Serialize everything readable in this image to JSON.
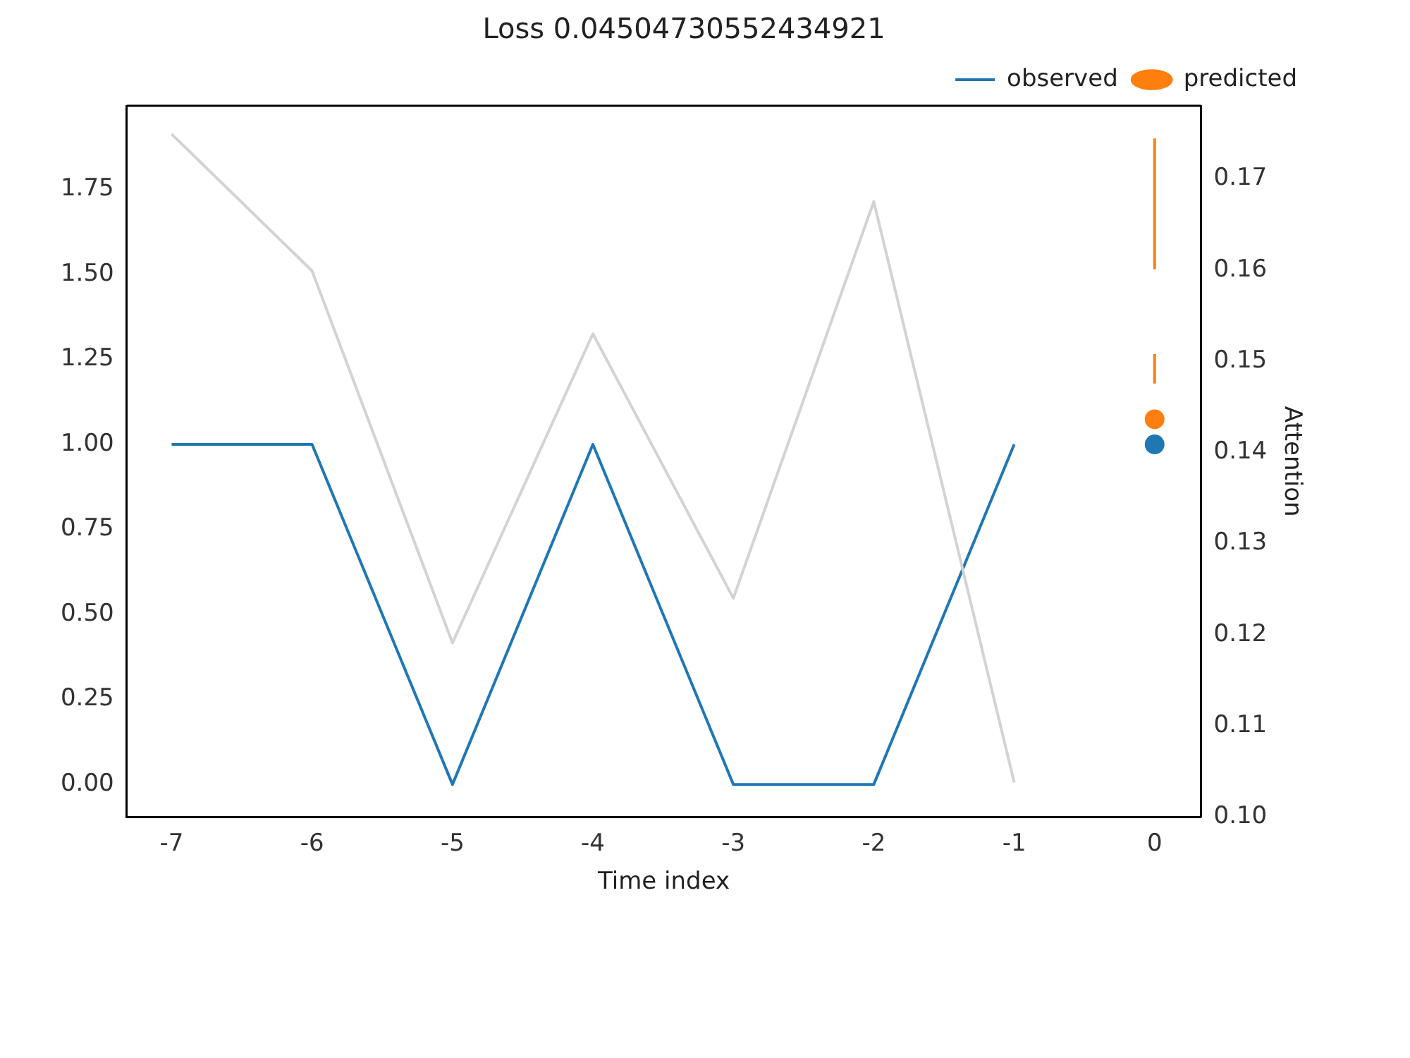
{
  "chart_data": {
    "type": "line",
    "title": "Loss 0.04504730552434921",
    "xlabel": "Time index",
    "y2label": "Attention",
    "xlim": [
      -7.32,
      0.33
    ],
    "xticks": [
      -7,
      -6,
      -5,
      -4,
      -3,
      -2,
      -1,
      0
    ],
    "ylim": [
      -0.096,
      1.996
    ],
    "yticks": [
      {
        "value": 0,
        "label": "0.00"
      },
      {
        "value": 0.25,
        "label": "0.25"
      },
      {
        "value": 0.5,
        "label": "0.50"
      },
      {
        "value": 0.75,
        "label": "0.75"
      },
      {
        "value": 1,
        "label": "1.00"
      },
      {
        "value": 1.25,
        "label": "1.25"
      },
      {
        "value": 1.5,
        "label": "1.50"
      },
      {
        "value": 1.75,
        "label": "1.75"
      }
    ],
    "y2lim": [
      0.1,
      0.178
    ],
    "y2ticks": [
      {
        "value": 0.1,
        "label": "0.10"
      },
      0.11,
      0.12,
      0.13,
      0.14,
      0.15,
      0.16,
      0.17
    ],
    "legend": "top right",
    "grid": false,
    "series": [
      {
        "axis": "y2",
        "color": "#d3d3d3",
        "x": [
          -7,
          -6,
          -5,
          -4,
          -3,
          -2,
          -1
        ],
        "values": [
          0.1749,
          0.1599,
          0.1191,
          0.153,
          0.124,
          0.1675,
          0.1038
        ],
        "marker": "none"
      },
      {
        "name": "observed",
        "color": "#1f77b4",
        "x": [
          -7,
          -6,
          -5,
          -4,
          -3,
          -2,
          -1
        ],
        "values": [
          1,
          1,
          0,
          1,
          0,
          0,
          1
        ],
        "marker": "none"
      },
      {
        "color": "#ff7f0e",
        "x": [
          0,
          0
        ],
        "values": [
          1.515,
          1.9
        ],
        "marker": "none"
      },
      {
        "color": "#ff7f0e",
        "x": [
          0,
          0
        ],
        "values": [
          1.179,
          1.266
        ],
        "marker": "none"
      },
      {
        "type": "scatter",
        "color": "#1f77b4",
        "x": [
          0
        ],
        "values": [
          1
        ],
        "marker": "circle"
      },
      {
        "type": "scatter",
        "name": "predicted",
        "color": "#ff7f0e",
        "x": [
          0
        ],
        "values": [
          1.074
        ],
        "marker": "circle"
      }
    ]
  }
}
